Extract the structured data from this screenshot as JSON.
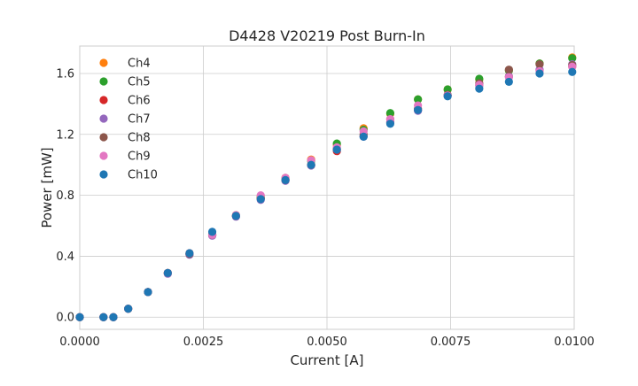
{
  "chart_data": {
    "type": "scatter",
    "title": "D4428 V20219 Post Burn-In",
    "xlabel": "Current [A]",
    "ylabel": "Power [mW]",
    "xlim": [
      0.0,
      0.01
    ],
    "ylim": [
      -0.08,
      1.78
    ],
    "x_ticks": [
      "0.0000",
      "0.0025",
      "0.0050",
      "0.0075",
      "0.0100"
    ],
    "x_tick_values": [
      0.0,
      0.0025,
      0.005,
      0.0075,
      0.01
    ],
    "y_ticks": [
      "0.0",
      "0.4",
      "0.8",
      "1.2",
      "1.6"
    ],
    "y_tick_values": [
      0.0,
      0.4,
      0.8,
      1.2,
      1.6
    ],
    "grid": true,
    "legend_position": "top-left",
    "x": [
      0.0,
      0.00048,
      0.00068,
      0.00098,
      0.00138,
      0.00178,
      0.00222,
      0.00268,
      0.00316,
      0.00366,
      0.00416,
      0.00468,
      0.0052,
      0.00574,
      0.00628,
      0.00684,
      0.00744,
      0.00808,
      0.00868,
      0.0093,
      0.00996
    ],
    "series": [
      {
        "name": "Ch4",
        "color": "#ff7f0e",
        "values": [
          0.0,
          0.0,
          0.0,
          0.055,
          0.165,
          0.29,
          0.42,
          0.545,
          0.67,
          0.795,
          0.915,
          1.035,
          1.13,
          1.24,
          1.335,
          1.43,
          1.495,
          1.56,
          1.62,
          1.665,
          1.705
        ]
      },
      {
        "name": "Ch5",
        "color": "#2ca02c",
        "values": [
          0.0,
          0.0,
          0.0,
          0.055,
          0.165,
          0.29,
          0.415,
          0.54,
          0.665,
          0.785,
          0.905,
          1.025,
          1.14,
          1.23,
          1.34,
          1.43,
          1.495,
          1.565,
          1.62,
          1.665,
          1.7
        ]
      },
      {
        "name": "Ch6",
        "color": "#d62728",
        "values": [
          0.0,
          0.0,
          0.0,
          0.055,
          0.165,
          0.29,
          0.415,
          0.54,
          0.665,
          0.78,
          0.9,
          1.0,
          1.09,
          1.19,
          1.28,
          1.36,
          1.455,
          1.525,
          1.58,
          1.62,
          1.645
        ]
      },
      {
        "name": "Ch7",
        "color": "#9467bd",
        "values": [
          0.0,
          0.0,
          0.0,
          0.055,
          0.165,
          0.285,
          0.41,
          0.535,
          0.66,
          0.77,
          0.895,
          0.995,
          1.1,
          1.185,
          1.28,
          1.355,
          1.455,
          1.52,
          1.58,
          1.625,
          1.66
        ]
      },
      {
        "name": "Ch8",
        "color": "#8c564b",
        "values": [
          0.0,
          0.0,
          0.0,
          0.055,
          0.165,
          0.29,
          0.415,
          0.54,
          0.665,
          0.78,
          0.9,
          1.0,
          1.105,
          1.2,
          1.3,
          1.37,
          1.46,
          1.535,
          1.625,
          1.66,
          1.655
        ]
      },
      {
        "name": "Ch9",
        "color": "#e377c2",
        "values": [
          0.0,
          0.0,
          0.0,
          0.055,
          0.165,
          0.29,
          0.42,
          0.54,
          0.67,
          0.8,
          0.915,
          1.03,
          1.115,
          1.22,
          1.3,
          1.39,
          1.455,
          1.525,
          1.575,
          1.615,
          1.645
        ]
      },
      {
        "name": "Ch10",
        "color": "#1f77b4",
        "values": [
          0.0,
          0.0,
          0.0,
          0.055,
          0.165,
          0.29,
          0.42,
          0.56,
          0.665,
          0.775,
          0.9,
          1.0,
          1.1,
          1.185,
          1.27,
          1.36,
          1.45,
          1.5,
          1.545,
          1.6,
          1.61
        ]
      }
    ]
  }
}
